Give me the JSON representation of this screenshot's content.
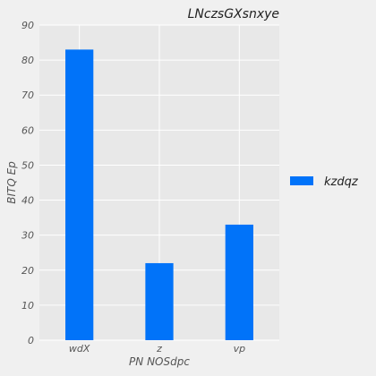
{
  "chart_data": {
    "type": "bar",
    "title": "LNczsGXsnxye",
    "xlabel": "PN NOSdpc",
    "ylabel": "BITQ Ep",
    "categories": [
      "wdX",
      "z",
      "vp"
    ],
    "series": [
      {
        "name": "kzdqz",
        "values": [
          83,
          22,
          33
        ],
        "color": "#0173f9"
      }
    ],
    "ylim": [
      0,
      90
    ],
    "yticks": [
      0,
      10,
      20,
      30,
      40,
      50,
      60,
      70,
      80,
      90
    ],
    "grid": true,
    "legend_position": "right",
    "plot_background": "#e8e8e8",
    "figure_background": "#f0f0f0"
  }
}
